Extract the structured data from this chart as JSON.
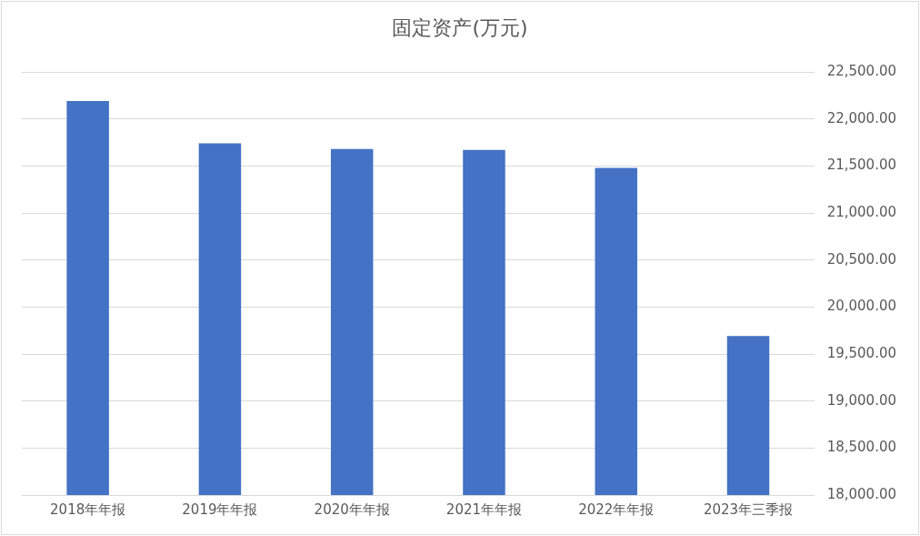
{
  "chart_data": {
    "type": "bar",
    "title": "固定资产(万元)",
    "categories": [
      "2018年年报",
      "2019年年报",
      "2020年年报",
      "2021年年报",
      "2022年年报",
      "2023年三季报"
    ],
    "values": [
      22190,
      21740,
      21680,
      21670,
      21480,
      19690
    ],
    "color": "#4472c4",
    "ylim": [
      18000,
      22500
    ],
    "yticks": [
      {
        "value": 18000,
        "label": "18,000.00"
      },
      {
        "value": 18500,
        "label": "18,500.00"
      },
      {
        "value": 19000,
        "label": "19,000.00"
      },
      {
        "value": 19500,
        "label": "19,500.00"
      },
      {
        "value": 20000,
        "label": "20,000.00"
      },
      {
        "value": 20500,
        "label": "20,500.00"
      },
      {
        "value": 21000,
        "label": "21,000.00"
      },
      {
        "value": 21500,
        "label": "21,500.00"
      },
      {
        "value": 22000,
        "label": "22,000.00"
      },
      {
        "value": 22500,
        "label": "22,500.00"
      }
    ],
    "grid": "y"
  }
}
